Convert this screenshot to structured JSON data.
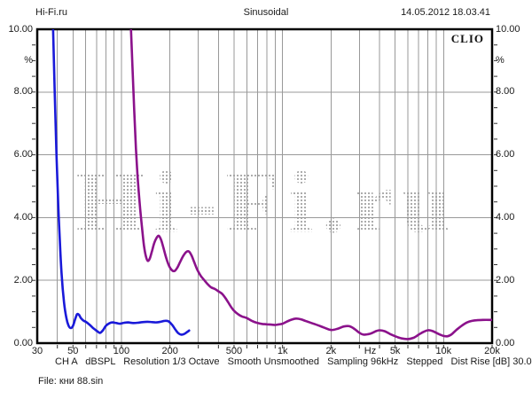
{
  "header": {
    "site": "Hi-Fi.ru",
    "title": "Sinusoidal",
    "datetime": "14.05.2012 18.03.41"
  },
  "logo": "CLIO",
  "watermark": "Hi-Fi.ru",
  "status_bar": "CH A   dBSPL   Resolution 1/3 Octave   Smooth Unsmoothed   Sampling 96kHz   Stepped   Dist Rise [dB] 30.00",
  "file_label": "File: кни 88.sin",
  "colors": {
    "blue_curve": "#1a1ad9",
    "purple_curve": "#8b128b",
    "grid": "#999999",
    "border": "#000000",
    "tick": "#333333",
    "watermark_dots": "#a6a6a6"
  },
  "chart_data": {
    "type": "line",
    "title": "Sinusoidal",
    "x_axis": {
      "unit": "Hz",
      "scale": "log",
      "min": 30,
      "max": 20000,
      "ticks": [
        {
          "f": 30,
          "label": "30"
        },
        {
          "f": 50,
          "label": "50"
        },
        {
          "f": 100,
          "label": "100"
        },
        {
          "f": 200,
          "label": "200"
        },
        {
          "f": 500,
          "label": "500"
        },
        {
          "f": 1000,
          "label": "1k"
        },
        {
          "f": 2000,
          "label": "2k"
        },
        {
          "f": 3500,
          "label": "Hz"
        },
        {
          "f": 5000,
          "label": "5k"
        },
        {
          "f": 10000,
          "label": "10k"
        },
        {
          "f": 20000,
          "label": "20k"
        }
      ],
      "gridline_values": [
        40,
        50,
        60,
        70,
        80,
        90,
        100,
        200,
        300,
        400,
        500,
        600,
        700,
        800,
        900,
        1000,
        2000,
        3000,
        4000,
        5000,
        6000,
        7000,
        8000,
        9000,
        10000,
        20000
      ]
    },
    "y_axis": {
      "unit": "%",
      "min": 0,
      "max": 10,
      "tick_values": [
        10,
        8,
        6,
        4,
        2,
        0
      ],
      "tick_labels": [
        "10.00",
        "8.00",
        "6.00",
        "4.00",
        "2.00",
        "0.00"
      ],
      "gridline_values": [
        2,
        4,
        6,
        8
      ],
      "minor_tick_step": 0.5
    },
    "grid": true,
    "legend": "none",
    "series": [
      {
        "name": "blue curve (distortion %, low band 30-260 Hz)",
        "color": "#1a1ad9",
        "points": [
          [
            37.5,
            10.3
          ],
          [
            38.5,
            8.0
          ],
          [
            39.5,
            6.0
          ],
          [
            40.5,
            4.4
          ],
          [
            41.5,
            3.2
          ],
          [
            42.5,
            2.2
          ],
          [
            44,
            1.3
          ],
          [
            45.5,
            0.8
          ],
          [
            47,
            0.55
          ],
          [
            48.5,
            0.48
          ],
          [
            50,
            0.55
          ],
          [
            51.5,
            0.75
          ],
          [
            53,
            0.92
          ],
          [
            54.5,
            0.9
          ],
          [
            56,
            0.8
          ],
          [
            58,
            0.72
          ],
          [
            60,
            0.68
          ],
          [
            63,
            0.6
          ],
          [
            66,
            0.5
          ],
          [
            69,
            0.42
          ],
          [
            72,
            0.35
          ],
          [
            74,
            0.33
          ],
          [
            77,
            0.42
          ],
          [
            80,
            0.55
          ],
          [
            84,
            0.63
          ],
          [
            88,
            0.66
          ],
          [
            93,
            0.64
          ],
          [
            98,
            0.62
          ],
          [
            104,
            0.65
          ],
          [
            110,
            0.66
          ],
          [
            118,
            0.64
          ],
          [
            126,
            0.65
          ],
          [
            135,
            0.67
          ],
          [
            145,
            0.68
          ],
          [
            155,
            0.67
          ],
          [
            165,
            0.66
          ],
          [
            175,
            0.68
          ],
          [
            185,
            0.71
          ],
          [
            195,
            0.7
          ],
          [
            205,
            0.6
          ],
          [
            215,
            0.45
          ],
          [
            225,
            0.32
          ],
          [
            235,
            0.27
          ],
          [
            245,
            0.29
          ],
          [
            255,
            0.35
          ],
          [
            263,
            0.4
          ]
        ]
      },
      {
        "name": "purple curve (distortion %, 115 Hz - 20 kHz)",
        "color": "#8b128b",
        "points": [
          [
            114,
            10.3
          ],
          [
            117,
            8.8
          ],
          [
            120,
            7.4
          ],
          [
            123,
            6.2
          ],
          [
            126,
            5.3
          ],
          [
            130,
            4.4
          ],
          [
            134,
            3.7
          ],
          [
            138,
            3.1
          ],
          [
            142,
            2.75
          ],
          [
            146,
            2.62
          ],
          [
            150,
            2.7
          ],
          [
            155,
            2.95
          ],
          [
            160,
            3.2
          ],
          [
            165,
            3.35
          ],
          [
            170,
            3.42
          ],
          [
            176,
            3.3
          ],
          [
            182,
            3.05
          ],
          [
            190,
            2.7
          ],
          [
            198,
            2.45
          ],
          [
            206,
            2.32
          ],
          [
            214,
            2.3
          ],
          [
            222,
            2.4
          ],
          [
            232,
            2.6
          ],
          [
            242,
            2.78
          ],
          [
            252,
            2.9
          ],
          [
            262,
            2.92
          ],
          [
            272,
            2.8
          ],
          [
            282,
            2.6
          ],
          [
            295,
            2.35
          ],
          [
            310,
            2.15
          ],
          [
            325,
            2.02
          ],
          [
            340,
            1.9
          ],
          [
            360,
            1.78
          ],
          [
            382,
            1.72
          ],
          [
            400,
            1.65
          ],
          [
            420,
            1.58
          ],
          [
            440,
            1.45
          ],
          [
            460,
            1.3
          ],
          [
            480,
            1.15
          ],
          [
            500,
            1.03
          ],
          [
            530,
            0.92
          ],
          [
            560,
            0.85
          ],
          [
            600,
            0.8
          ],
          [
            650,
            0.7
          ],
          [
            700,
            0.64
          ],
          [
            750,
            0.61
          ],
          [
            800,
            0.6
          ],
          [
            850,
            0.59
          ],
          [
            900,
            0.58
          ],
          [
            950,
            0.6
          ],
          [
            1000,
            0.62
          ],
          [
            1100,
            0.72
          ],
          [
            1200,
            0.78
          ],
          [
            1300,
            0.76
          ],
          [
            1400,
            0.7
          ],
          [
            1600,
            0.6
          ],
          [
            1800,
            0.5
          ],
          [
            2000,
            0.42
          ],
          [
            2200,
            0.46
          ],
          [
            2400,
            0.53
          ],
          [
            2600,
            0.54
          ],
          [
            2800,
            0.45
          ],
          [
            3000,
            0.33
          ],
          [
            3200,
            0.27
          ],
          [
            3500,
            0.3
          ],
          [
            3800,
            0.38
          ],
          [
            4000,
            0.41
          ],
          [
            4300,
            0.38
          ],
          [
            4700,
            0.28
          ],
          [
            5000,
            0.22
          ],
          [
            5500,
            0.15
          ],
          [
            6000,
            0.13
          ],
          [
            6500,
            0.17
          ],
          [
            7000,
            0.27
          ],
          [
            7500,
            0.36
          ],
          [
            8000,
            0.41
          ],
          [
            8500,
            0.39
          ],
          [
            9000,
            0.33
          ],
          [
            9500,
            0.27
          ],
          [
            10000,
            0.23
          ],
          [
            10600,
            0.22
          ],
          [
            11200,
            0.28
          ],
          [
            12000,
            0.42
          ],
          [
            13000,
            0.56
          ],
          [
            14000,
            0.66
          ],
          [
            15000,
            0.71
          ],
          [
            16000,
            0.73
          ],
          [
            17500,
            0.74
          ],
          [
            20000,
            0.74
          ]
        ]
      }
    ],
    "watermark": "Hi-Fi.ru",
    "logo": "CLIO"
  }
}
